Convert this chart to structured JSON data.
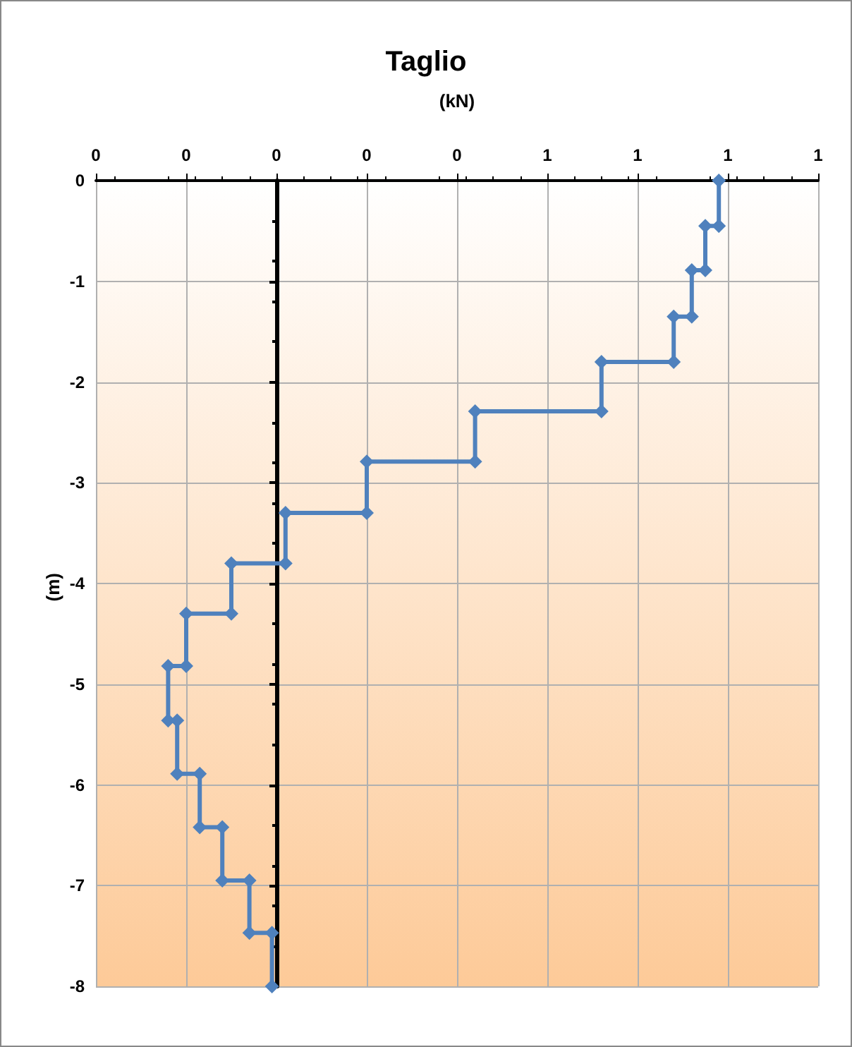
{
  "chart_data": {
    "type": "line",
    "title": "Taglio",
    "xlabel": "(kN)",
    "ylabel": "(m)",
    "xlim": [
      -0.4,
      1.2
    ],
    "xticks": [
      {
        "value": -0.4,
        "label": "0"
      },
      {
        "value": -0.2,
        "label": "0"
      },
      {
        "value": 0,
        "label": "0"
      },
      {
        "value": 0.2,
        "label": "0"
      },
      {
        "value": 0.4,
        "label": "0"
      },
      {
        "value": 0.6,
        "label": "1"
      },
      {
        "value": 0.8,
        "label": "1"
      },
      {
        "value": 1.0,
        "label": "1"
      },
      {
        "value": 1.2,
        "label": "1"
      }
    ],
    "ylim": [
      -8,
      0
    ],
    "yticks": [
      0,
      -1,
      -2,
      -3,
      -4,
      -5,
      -6,
      -7,
      -8
    ],
    "grid": true,
    "marker": "diamond",
    "line_style": "solid",
    "series": [
      {
        "color": "#4f81bd",
        "x": [
          0.98,
          0.98,
          0.95,
          0.95,
          0.92,
          0.92,
          0.88,
          0.88,
          0.72,
          0.72,
          0.44,
          0.44,
          0.2,
          0.2,
          0.02,
          0.02,
          -0.1,
          -0.1,
          -0.2,
          -0.2,
          -0.24,
          -0.24,
          -0.22,
          -0.22,
          -0.17,
          -0.17,
          -0.12,
          -0.12,
          -0.06,
          -0.06,
          -0.01,
          -0.01
        ],
        "values": [
          0,
          -0.45,
          -0.45,
          -0.89,
          -0.89,
          -1.35,
          -1.35,
          -1.8,
          -1.8,
          -2.29,
          -2.29,
          -2.79,
          -2.79,
          -3.3,
          -3.3,
          -3.8,
          -3.8,
          -4.3,
          -4.3,
          -4.82,
          -4.82,
          -5.36,
          -5.36,
          -5.89,
          -5.89,
          -6.42,
          -6.42,
          -6.95,
          -6.95,
          -7.47,
          -7.47,
          -8
        ]
      }
    ]
  }
}
